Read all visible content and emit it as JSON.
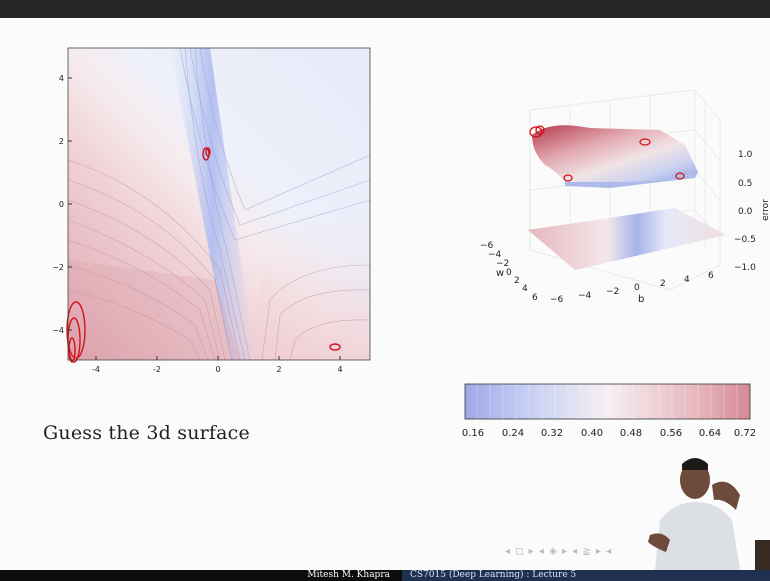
{
  "slide": {
    "caption": "Guess the 3d surface",
    "navigation_symbols": "◂ ◻ ▸ ◂ ◈ ▸ ◂ ≧ ▸ ◂"
  },
  "footer": {
    "author": "Mitesh M. Khapra",
    "course": "CS7015 (Deep Learning) : Lecture 5"
  },
  "contour_plot": {
    "x_ticks": [
      "-4",
      "-2",
      "0",
      "2",
      "4"
    ],
    "y_ticks": [
      "4",
      "2",
      "0",
      "−2",
      "−4"
    ]
  },
  "surface_plot": {
    "z_axis_label": "error",
    "z_ticks": [
      "1.0",
      "0.5",
      "0.0",
      "−0.5",
      "−1.0"
    ],
    "w_axis_label": "w",
    "w_ticks": [
      "−6",
      "−4",
      "−2",
      "0",
      "2",
      "4",
      "6"
    ],
    "b_axis_label": "b",
    "b_ticks": [
      "−6",
      "−4",
      "−2",
      "0",
      "2",
      "4",
      "6"
    ]
  },
  "colorbar": {
    "ticks": [
      "0.16",
      "0.24",
      "0.32",
      "0.40",
      "0.48",
      "0.56",
      "0.64",
      "0.72"
    ],
    "colors": {
      "low": "#9ea8e6",
      "mid": "#f5f0f2",
      "high": "#d58a96"
    }
  }
}
